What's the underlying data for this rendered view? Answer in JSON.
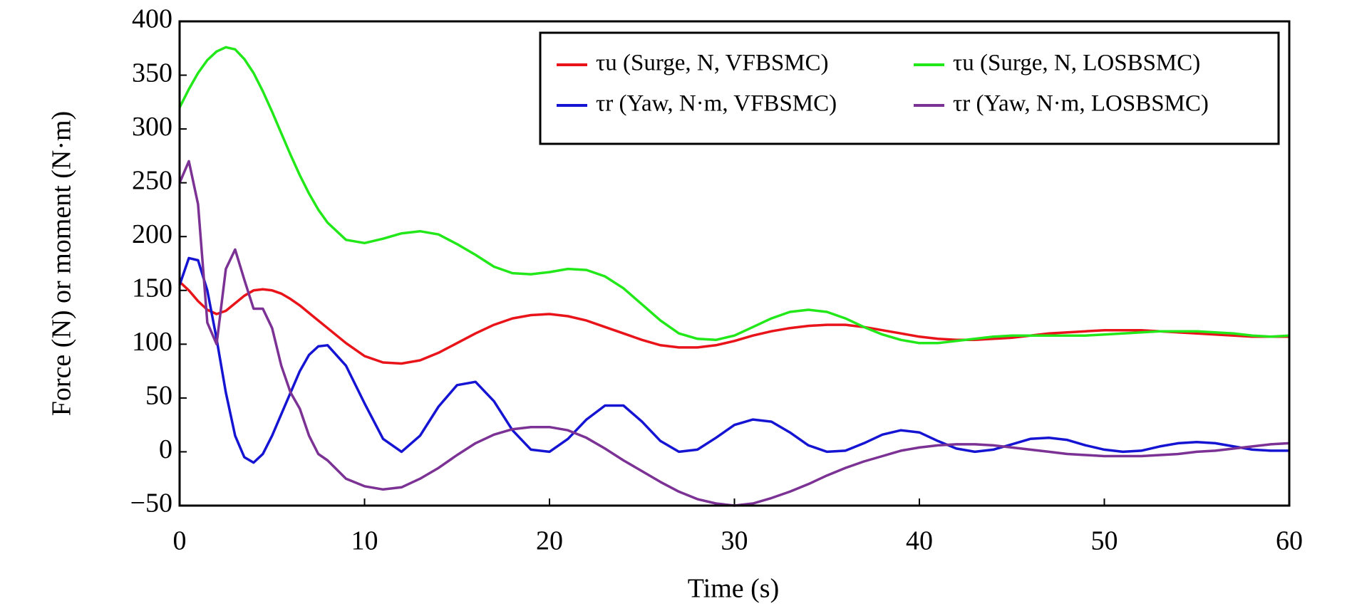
{
  "chart_data": {
    "type": "line",
    "xlabel": "Time (s)",
    "ylabel": "Force (N) or moment (N·m)",
    "x": [
      0,
      0.5,
      1,
      1.5,
      2,
      2.5,
      3,
      3.5,
      4,
      4.5,
      5,
      5.5,
      6,
      6.5,
      7,
      7.5,
      8,
      9,
      10,
      11,
      12,
      13,
      14,
      15,
      16,
      17,
      18,
      19,
      20,
      21,
      22,
      23,
      24,
      25,
      26,
      27,
      28,
      29,
      30,
      31,
      32,
      33,
      34,
      35,
      36,
      37,
      38,
      39,
      40,
      41,
      42,
      43,
      44,
      45,
      46,
      47,
      48,
      49,
      50,
      51,
      52,
      53,
      54,
      55,
      56,
      57,
      58,
      59,
      60
    ],
    "series": [
      {
        "name": "τu (Surge, N, VFBSMC)",
        "color": "#e8141a",
        "values": [
          158,
          150,
          140,
          132,
          128,
          131,
          138,
          145,
          150,
          151,
          150,
          147,
          142,
          136,
          129,
          122,
          115,
          101,
          89,
          83,
          82,
          85,
          92,
          101,
          110,
          118,
          124,
          127,
          128,
          126,
          122,
          116,
          110,
          104,
          99,
          97,
          97,
          99,
          103,
          108,
          112,
          115,
          117,
          118,
          118,
          116,
          113,
          110,
          107,
          105,
          104,
          104,
          105,
          106,
          108,
          110,
          111,
          112,
          113,
          113,
          113,
          112,
          111,
          110,
          109,
          108,
          107,
          107,
          107
        ]
      },
      {
        "name": "τu (Surge, N, LOSBSMC)",
        "color": "#22e81a",
        "values": [
          320,
          337,
          352,
          364,
          372,
          376,
          374,
          365,
          352,
          335,
          316,
          296,
          276,
          257,
          240,
          225,
          213,
          197,
          194,
          198,
          203,
          205,
          202,
          193,
          183,
          172,
          166,
          165,
          167,
          170,
          169,
          163,
          152,
          137,
          122,
          110,
          105,
          104,
          108,
          116,
          124,
          130,
          132,
          130,
          124,
          116,
          109,
          104,
          101,
          101,
          103,
          105,
          107,
          108,
          108,
          108,
          108,
          108,
          109,
          110,
          111,
          112,
          112,
          112,
          111,
          110,
          108,
          107,
          108
        ]
      },
      {
        "name": "τr (Yaw, N·m, VFBSMC)",
        "color": "#1414d2",
        "values": [
          155,
          180,
          178,
          150,
          105,
          55,
          15,
          -5,
          -10,
          -2,
          15,
          35,
          55,
          75,
          90,
          98,
          99,
          80,
          45,
          12,
          0,
          15,
          42,
          62,
          65,
          47,
          20,
          2,
          0,
          12,
          30,
          43,
          43,
          28,
          10,
          0,
          2,
          13,
          25,
          30,
          28,
          18,
          6,
          0,
          1,
          8,
          16,
          20,
          18,
          10,
          3,
          0,
          2,
          7,
          12,
          13,
          11,
          6,
          2,
          0,
          1,
          5,
          8,
          9,
          8,
          5,
          2,
          1,
          1
        ]
      },
      {
        "name": "τr (Yaw, N·m, LOSBSMC)",
        "color": "#7b3294",
        "values": [
          250,
          270,
          230,
          120,
          100,
          170,
          188,
          160,
          133,
          133,
          115,
          80,
          55,
          40,
          15,
          -2,
          -8,
          -25,
          -32,
          -35,
          -33,
          -25,
          -15,
          -3,
          8,
          16,
          21,
          23,
          23,
          20,
          13,
          3,
          -8,
          -18,
          -28,
          -37,
          -44,
          -48,
          -50,
          -48,
          -43,
          -37,
          -30,
          -22,
          -15,
          -9,
          -4,
          1,
          4,
          6,
          7,
          7,
          6,
          4,
          2,
          0,
          -2,
          -3,
          -4,
          -4,
          -4,
          -3,
          -2,
          0,
          1,
          3,
          5,
          7,
          8
        ]
      }
    ],
    "xlim": [
      0,
      60
    ],
    "xticks": [
      0,
      10,
      20,
      30,
      40,
      50,
      60
    ],
    "ylim": [
      -50,
      400
    ],
    "yticks": [
      {
        "value": -50,
        "label": "−50"
      },
      0,
      50,
      100,
      150,
      200,
      250,
      300,
      350,
      400
    ],
    "grid": false,
    "legend": "upper right"
  }
}
